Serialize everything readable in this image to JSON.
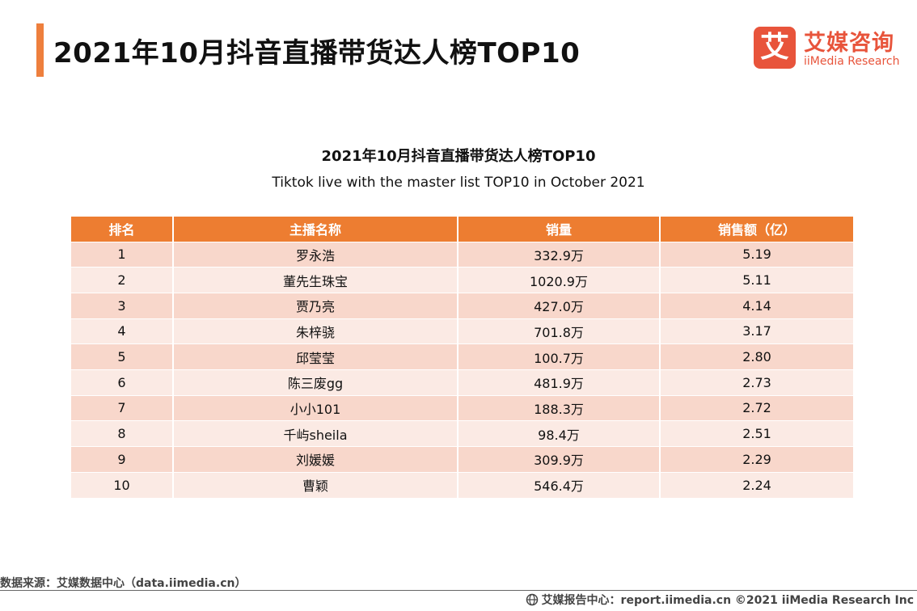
{
  "header": {
    "title": "2021年10月抖音直播带货达人榜TOP10"
  },
  "logo": {
    "mark": "艾",
    "cn": "艾媒咨询",
    "en": "iiMedia Research"
  },
  "table": {
    "title": "2021年10月抖音直播带货达人榜TOP10",
    "subtitle": "Tiktok live with the master list TOP10 in October 2021",
    "columns": [
      "排名",
      "主播名称",
      "销量",
      "销售额（亿）"
    ],
    "rows": [
      [
        "1",
        "罗永浩",
        "332.9万",
        "5.19"
      ],
      [
        "2",
        "董先生珠宝",
        "1020.9万",
        "5.11"
      ],
      [
        "3",
        "贾乃亮",
        "427.0万",
        "4.14"
      ],
      [
        "4",
        "朱梓骁",
        "701.8万",
        "3.17"
      ],
      [
        "5",
        "邱莹莹",
        "100.7万",
        "2.80"
      ],
      [
        "6",
        "陈三废gg",
        "481.9万",
        "2.73"
      ],
      [
        "7",
        "小小101",
        "188.3万",
        "2.72"
      ],
      [
        "8",
        "千屿sheila",
        "98.4万",
        "2.51"
      ],
      [
        "9",
        "刘媛媛",
        "309.9万",
        "2.29"
      ],
      [
        "10",
        "曹颖",
        "546.4万",
        "2.24"
      ]
    ]
  },
  "footer": {
    "source": "数据来源：艾媒数据中心（data.iimedia.cn）",
    "report": "艾媒报告中心：report.iimedia.cn ©2021  iiMedia Research  Inc"
  },
  "colors": {
    "accent": "#ee7f3d",
    "header_bg": "#ed7d31",
    "row_odd": "#f8d7cb",
    "row_even": "#fbeae4",
    "logo": "#e8543b"
  }
}
